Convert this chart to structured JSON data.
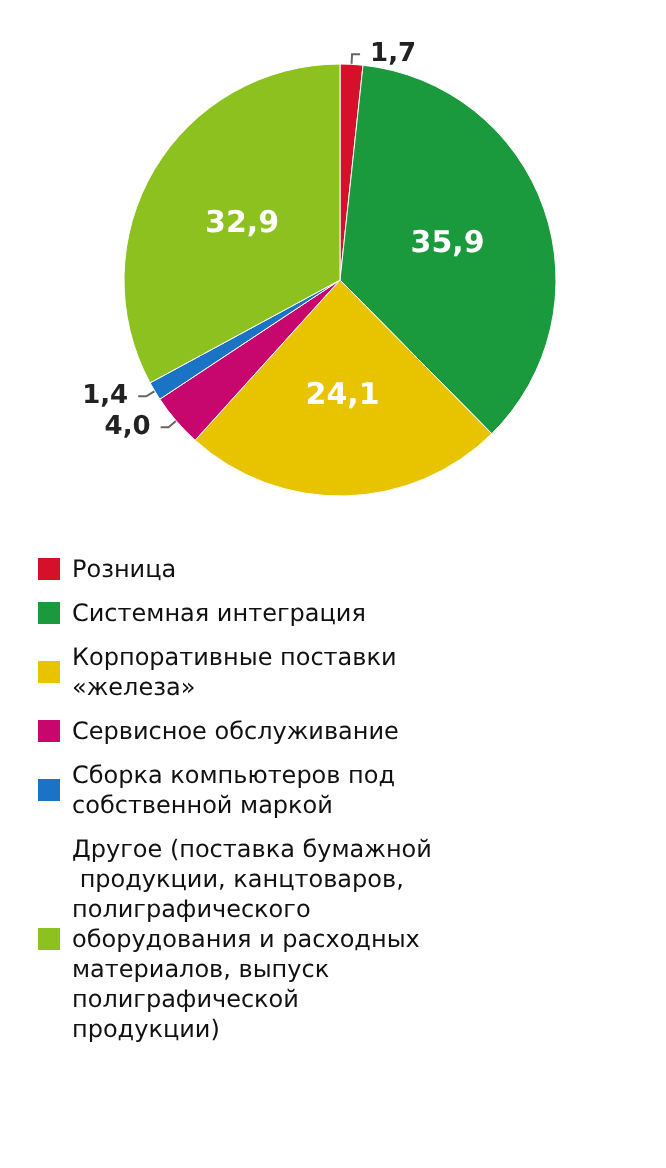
{
  "chart_data": {
    "type": "pie",
    "categories": [
      "Розница",
      "Системная интеграция",
      "Корпоративные поставки «железа»",
      "Сервисное обслуживание",
      "Сборка компьютеров под собственной маркой",
      "Другое (поставка бумажной продукции, канцтоваров, полиграфического оборудования и расходных материалов, выпуск полиграфической продукции)"
    ],
    "values": [
      1.7,
      35.9,
      24.1,
      4.0,
      1.4,
      32.9
    ],
    "value_labels": [
      "1,7",
      "35,9",
      "24,1",
      "4,0",
      "1,4",
      "32,9"
    ],
    "colors": [
      "#d7102a",
      "#1a9a3c",
      "#e8c400",
      "#c8076e",
      "#1a73c4",
      "#8cc11f"
    ],
    "legend": "bottom"
  }
}
